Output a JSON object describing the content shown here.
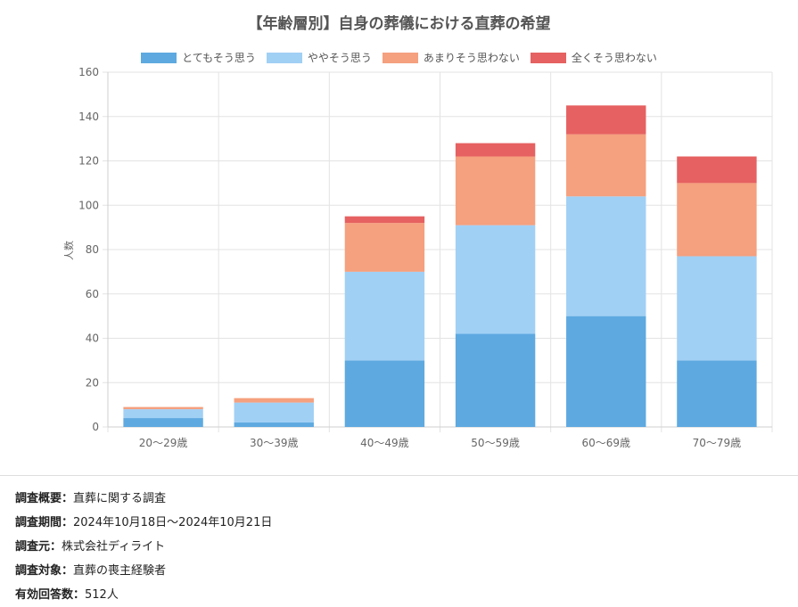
{
  "chart_data": {
    "type": "bar",
    "stacked": true,
    "title": "【年齢層別】自身の葬儀における直葬の希望",
    "ylabel": "人数",
    "xlabel": "",
    "ylim": [
      0,
      160
    ],
    "yticks": [
      0,
      20,
      40,
      60,
      80,
      100,
      120,
      140,
      160
    ],
    "grid": true,
    "legend_position": "top",
    "categories": [
      "20〜29歳",
      "30〜39歳",
      "40〜49歳",
      "50〜59歳",
      "60〜69歳",
      "70〜79歳"
    ],
    "series": [
      {
        "name": "とてもそう思う",
        "color": "#5ea9e0",
        "values": [
          4,
          2,
          30,
          42,
          50,
          30
        ]
      },
      {
        "name": "ややそう思う",
        "color": "#a1d0f5",
        "values": [
          4,
          9,
          40,
          49,
          54,
          47
        ]
      },
      {
        "name": "あまりそう思わない",
        "color": "#f5a07e",
        "values": [
          1,
          2,
          22,
          31,
          28,
          33
        ]
      },
      {
        "name": "全くそう思わない",
        "color": "#e66161",
        "values": [
          0,
          0,
          3,
          6,
          13,
          12
        ]
      }
    ]
  },
  "survey": [
    {
      "label": "調査概要：",
      "value": "直葬に関する調査"
    },
    {
      "label": "調査期間：",
      "value": "2024年10月18日〜2024年10月21日"
    },
    {
      "label": "調査元：",
      "value": "株式会社ディライト"
    },
    {
      "label": "調査対象：",
      "value": "直葬の喪主経験者"
    },
    {
      "label": "有効回答数：",
      "value": "512人"
    }
  ]
}
